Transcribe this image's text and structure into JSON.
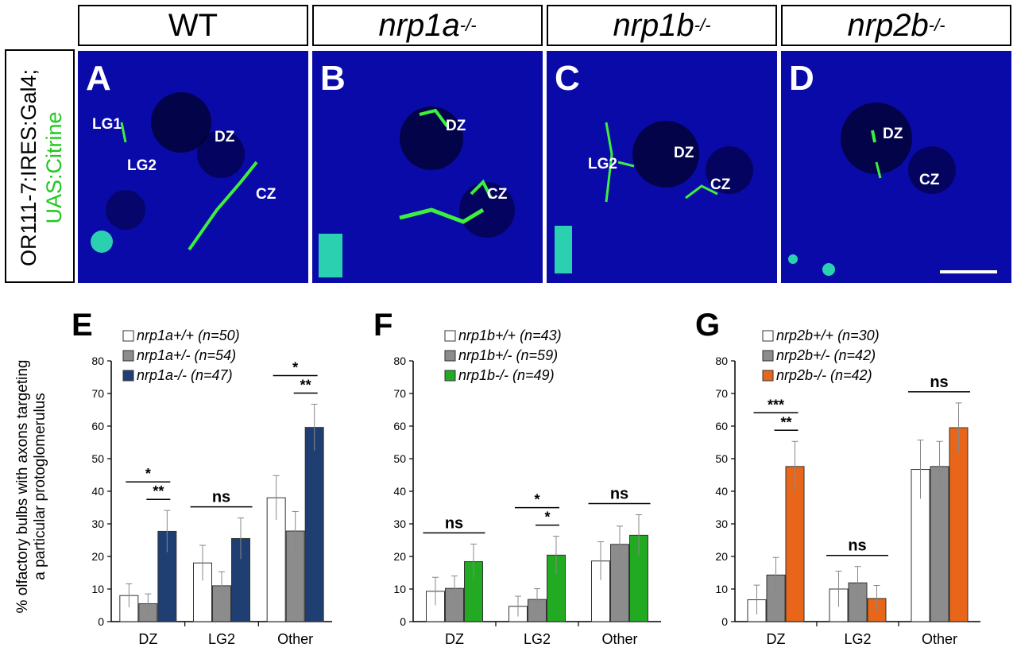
{
  "headers": [
    {
      "name": "WT",
      "sup": ""
    },
    {
      "name": "nrp1a",
      "sup": "-/-"
    },
    {
      "name": "nrp1b",
      "sup": "-/-"
    },
    {
      "name": "nrp2b",
      "sup": "-/-"
    }
  ],
  "side_label": {
    "line1": "OR111-7:IRES:Gal4;",
    "line2": "UAS:Citrine"
  },
  "panels": [
    {
      "letter": "A",
      "labels": [
        "LG1",
        "LG2",
        "DZ",
        "CZ"
      ]
    },
    {
      "letter": "B",
      "labels": [
        "DZ",
        "CZ"
      ]
    },
    {
      "letter": "C",
      "labels": [
        "LG2",
        "DZ",
        "CZ"
      ]
    },
    {
      "letter": "D",
      "labels": [
        "DZ",
        "CZ"
      ]
    }
  ],
  "y_axis_label": {
    "line1": "% olfactory bulbs with axons targeting",
    "line2": "a particular protoglomerulus"
  },
  "chart_data": [
    {
      "type": "bar",
      "panel": "E",
      "categories": [
        "DZ",
        "LG2",
        "Other"
      ],
      "ylim": [
        0,
        80
      ],
      "yticks": [
        0,
        10,
        20,
        30,
        40,
        50,
        60,
        70,
        80
      ],
      "series": [
        {
          "name": "nrp1a+/+ (n=50)",
          "color": "#ffffff",
          "values": [
            8,
            18,
            38
          ],
          "err": [
            3.6,
            5.4,
            6.8
          ]
        },
        {
          "name": "nrp1a+/- (n=54)",
          "color": "#8c8c8c",
          "values": [
            5.5,
            11,
            27.8
          ],
          "err": [
            3,
            4.3,
            6
          ]
        },
        {
          "name": "nrp1a-/- (n=47)",
          "color": "#1f3f73",
          "values": [
            27.7,
            25.5,
            59.6
          ],
          "err": [
            6.4,
            6.3,
            7.1
          ]
        }
      ],
      "annotations": [
        {
          "group": "DZ",
          "lines": [
            "*",
            "**"
          ]
        },
        {
          "group": "LG2",
          "lines": [
            "ns"
          ]
        },
        {
          "group": "Other",
          "lines": [
            "*",
            "**"
          ]
        }
      ]
    },
    {
      "type": "bar",
      "panel": "F",
      "categories": [
        "DZ",
        "LG2",
        "Other"
      ],
      "ylim": [
        0,
        80
      ],
      "yticks": [
        0,
        10,
        20,
        30,
        40,
        50,
        60,
        70,
        80
      ],
      "series": [
        {
          "name": "nrp1b+/+ (n=43)",
          "color": "#ffffff",
          "values": [
            9.3,
            4.7,
            18.6
          ],
          "err": [
            4.3,
            3.1,
            5.9
          ]
        },
        {
          "name": "nrp1b+/- (n=59)",
          "color": "#8c8c8c",
          "values": [
            10.2,
            6.8,
            23.7
          ],
          "err": [
            3.8,
            3.3,
            5.6
          ]
        },
        {
          "name": "nrp1b-/- (n=49)",
          "color": "#22aa22",
          "values": [
            18.4,
            20.4,
            26.5
          ],
          "err": [
            5.4,
            5.8,
            6.3
          ]
        }
      ],
      "annotations": [
        {
          "group": "DZ",
          "lines": [
            "ns"
          ]
        },
        {
          "group": "LG2",
          "lines": [
            "*",
            "*"
          ]
        },
        {
          "group": "Other",
          "lines": [
            "ns"
          ]
        }
      ]
    },
    {
      "type": "bar",
      "panel": "G",
      "categories": [
        "DZ",
        "LG2",
        "Other"
      ],
      "ylim": [
        0,
        80
      ],
      "yticks": [
        0,
        10,
        20,
        30,
        40,
        50,
        60,
        70,
        80
      ],
      "series": [
        {
          "name": "nrp2b+/+ (n=30)",
          "color": "#ffffff",
          "values": [
            6.7,
            10,
            46.7
          ],
          "err": [
            4.5,
            5.5,
            9
          ]
        },
        {
          "name": "nrp2b+/- (n=42)",
          "color": "#8c8c8c",
          "values": [
            14.3,
            11.9,
            47.6
          ],
          "err": [
            5.4,
            5,
            7.7
          ]
        },
        {
          "name": "nrp2b-/- (n=42)",
          "color": "#e8661a",
          "values": [
            47.6,
            7.1,
            59.5
          ],
          "err": [
            7.7,
            4,
            7.6
          ]
        }
      ],
      "annotations": [
        {
          "group": "DZ",
          "lines": [
            "***",
            "**"
          ]
        },
        {
          "group": "LG2",
          "lines": [
            "ns"
          ]
        },
        {
          "group": "Other",
          "lines": [
            "ns"
          ]
        }
      ]
    }
  ]
}
